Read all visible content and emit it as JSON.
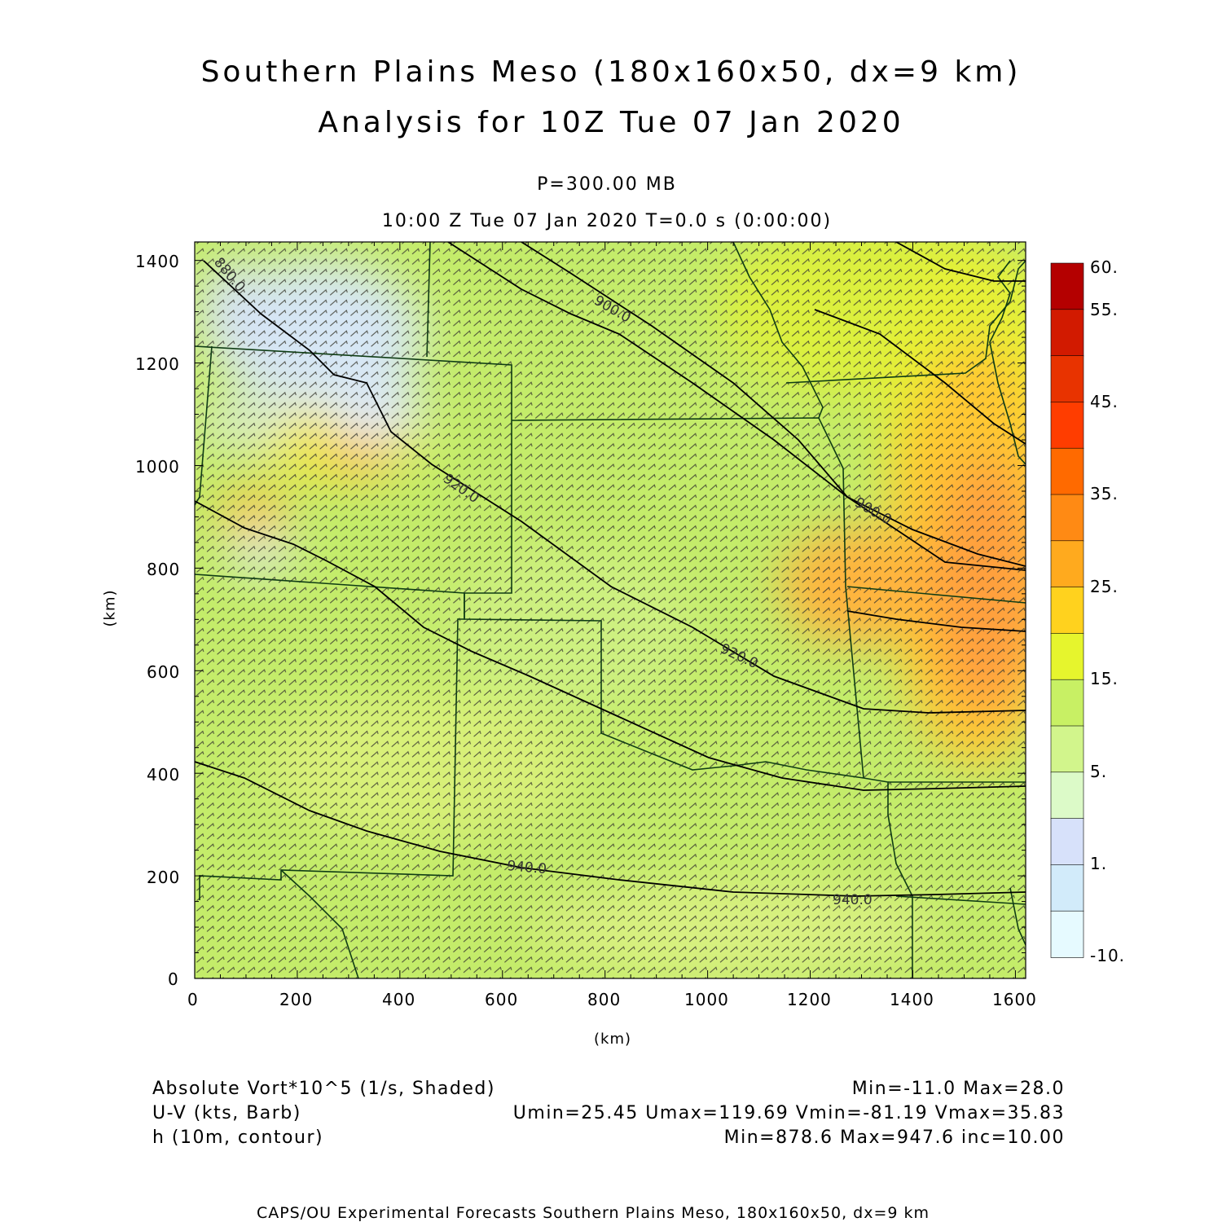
{
  "header": {
    "title_line1": "Southern Plains Meso (180x160x50, dx=9 km)",
    "title_line2": "Analysis for 10Z Tue 07 Jan 2020",
    "level": "P=300.00 MB",
    "time": "10:00 Z Tue 07 Jan 2020    T=0.0 s (0:00:00)"
  },
  "axes": {
    "x_label": "(km)",
    "y_label": "(km)",
    "x_ticks": [
      "0",
      "200",
      "400",
      "600",
      "800",
      "1000",
      "1200",
      "1400",
      "1600"
    ],
    "y_ticks": [
      "0",
      "200",
      "400",
      "600",
      "800",
      "1000",
      "1200",
      "1400"
    ]
  },
  "colorbar": {
    "labels": [
      "60.",
      "55.",
      "45.",
      "35.",
      "25.",
      "15.",
      "5.",
      "1.",
      "-10."
    ],
    "colors": [
      "#b40000",
      "#d21a00",
      "#e83300",
      "#ff3d00",
      "#ff6a00",
      "#ff8a14",
      "#ffaa1e",
      "#ffd21e",
      "#e6f52d",
      "#c8f064",
      "#d2f58c",
      "#dcfac8",
      "#d7e1fa",
      "#d2ebfa",
      "#e6faff"
    ]
  },
  "contours": {
    "labels": [
      "880.0",
      "900.0",
      "920.0",
      "900.0",
      "920.0",
      "940.0",
      "940.0"
    ]
  },
  "legend": {
    "field1": "Absolute Vort*10^5 (1/s, Shaded)",
    "field1_stats": "Min=-11.0 Max=28.0",
    "field2": "U-V (kts, Barb)",
    "field2_stats": "Umin=25.45 Umax=119.69 Vmin=-81.19 Vmax=35.83",
    "field3": "h (10m, contour)",
    "field3_stats": "Min=878.6 Max=947.6 inc=10.00"
  },
  "footer": {
    "text": "CAPS/OU Experimental Forecasts  Southern Plains Meso, 180x160x50, dx=9 km"
  }
}
